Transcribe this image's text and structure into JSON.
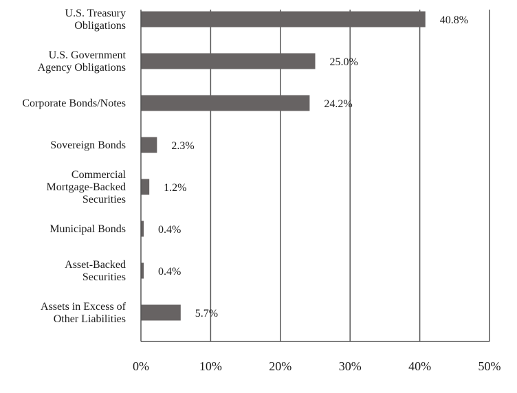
{
  "chart_data": {
    "type": "bar",
    "orientation": "horizontal",
    "categories": [
      "U.S. Treasury Obligations",
      "U.S. Government Agency Obligations",
      "Corporate Bonds/Notes",
      "Sovereign Bonds",
      "Commercial Mortgage-Backed Securities",
      "Municipal Bonds",
      "Asset-Backed Securities",
      "Assets in Excess of Other Liabilities"
    ],
    "category_label_lines": [
      [
        "U.S. Treasury",
        "Obligations"
      ],
      [
        "U.S. Government",
        "Agency Obligations"
      ],
      [
        "Corporate Bonds/Notes"
      ],
      [
        "Sovereign Bonds"
      ],
      [
        "Commercial",
        "Mortgage-Backed",
        "Securities"
      ],
      [
        "Municipal Bonds"
      ],
      [
        "Asset-Backed",
        "Securities"
      ],
      [
        "Assets in Excess of",
        "Other Liabilities"
      ]
    ],
    "values": [
      40.8,
      25.0,
      24.2,
      2.3,
      1.2,
      0.4,
      0.4,
      5.7
    ],
    "value_labels": [
      "40.8%",
      "25.0%",
      "24.2%",
      "2.3%",
      "1.2%",
      "0.4%",
      "0.4%",
      "5.7%"
    ],
    "xlim": [
      0,
      50
    ],
    "x_ticks": [
      0,
      10,
      20,
      30,
      40,
      50
    ],
    "x_tick_labels": [
      "0%",
      "10%",
      "20%",
      "30%",
      "40%",
      "50%"
    ],
    "grid": "vertical",
    "legend": "none",
    "bar_color": "#676363",
    "grid_color": "#555555"
  }
}
